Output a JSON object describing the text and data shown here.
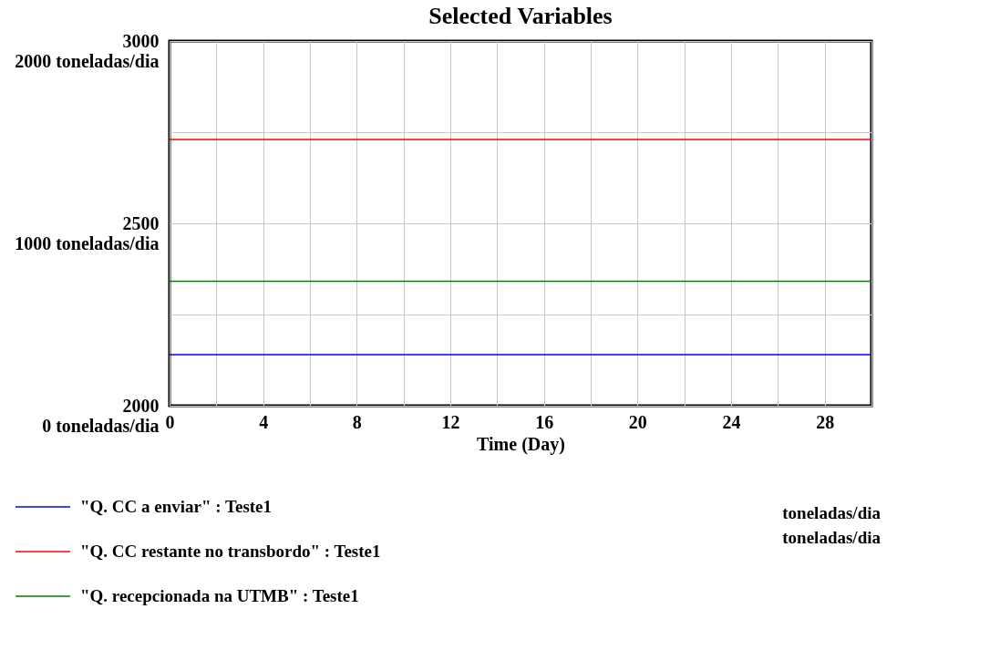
{
  "chart_data": {
    "type": "line",
    "title": "Selected Variables",
    "xlabel": "Time (Day)",
    "x": [
      0,
      30
    ],
    "xlim": [
      0,
      30
    ],
    "xticks": [
      0,
      {
        "value": 2,
        "label": null
      },
      4,
      {
        "value": 6,
        "label": null
      },
      8,
      {
        "value": 10,
        "label": null
      },
      12,
      {
        "value": 14,
        "label": null
      },
      16,
      {
        "value": 18,
        "label": null
      },
      20,
      {
        "value": 22,
        "label": null
      },
      24,
      {
        "value": 26,
        "label": null
      },
      28,
      {
        "value": 30,
        "label": null
      }
    ],
    "ylim": [
      2000,
      3000
    ],
    "yticks": [
      2000,
      {
        "value": 2250,
        "label": null
      },
      2500,
      {
        "value": 2750,
        "label": null
      },
      3000
    ],
    "y2lim": [
      0,
      2000
    ],
    "y2ticks": [
      {
        "value": 0,
        "label": "0   toneladas/dia"
      },
      {
        "value": 500,
        "label": null
      },
      {
        "value": 1000,
        "label": "1000   toneladas/dia"
      },
      {
        "value": 1500,
        "label": null
      },
      {
        "value": 2000,
        "label": "2000   toneladas/dia"
      }
    ],
    "series": [
      {
        "name": "\"Q. CC a enviar\" : Teste1",
        "color": "#0000ff",
        "values": [
          2140,
          2140
        ]
      },
      {
        "name": "\"Q. CC restante no transbordo\" : Teste1",
        "color": "#ff0000",
        "values": [
          1460,
          1460
        ],
        "axis": "y2"
      },
      {
        "name": "\"Q. recepcionada na UTMB\" : Teste1",
        "color": "#008000",
        "values": [
          683,
          683
        ],
        "axis": "y2"
      }
    ],
    "annotations": [
      "toneladas/dia",
      "toneladas/dia"
    ],
    "grid": true,
    "legend": "bottom",
    "marker": "none",
    "line_style": "solid"
  }
}
